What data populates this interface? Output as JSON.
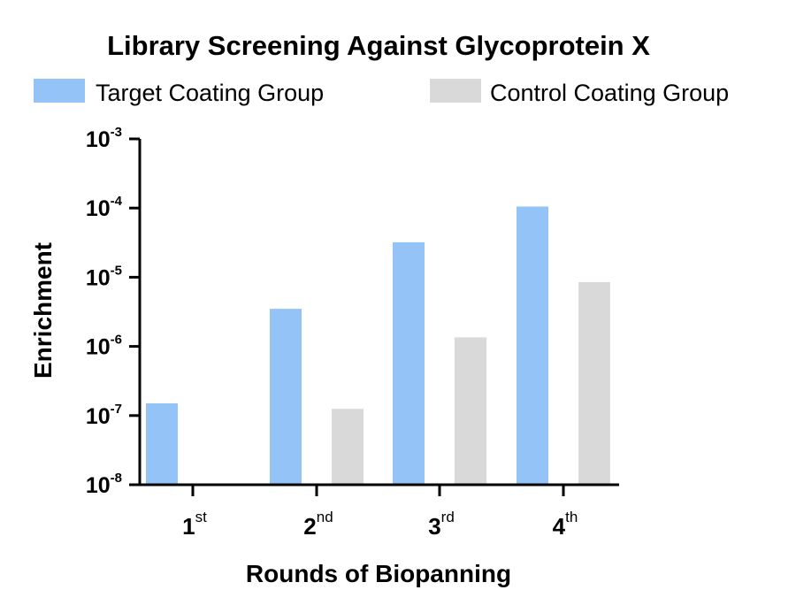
{
  "chart_data": {
    "type": "bar",
    "title": "Library Screening Against Glycoprotein X",
    "xlabel": "Rounds of Biopanning",
    "ylabel": "Enrichment",
    "yscale": "log",
    "ylim": [
      1e-08,
      0.001
    ],
    "yticks": [
      {
        "base": "10",
        "exp": "-3",
        "value": 0.001
      },
      {
        "base": "10",
        "exp": "-4",
        "value": 0.0001
      },
      {
        "base": "10",
        "exp": "-5",
        "value": 1e-05
      },
      {
        "base": "10",
        "exp": "-6",
        "value": 1e-06
      },
      {
        "base": "10",
        "exp": "-7",
        "value": 1e-07
      },
      {
        "base": "10",
        "exp": "-8",
        "value": 1e-08
      }
    ],
    "categories": [
      {
        "main": "1",
        "sup": "st"
      },
      {
        "main": "2",
        "sup": "nd"
      },
      {
        "main": "3",
        "sup": "rd"
      },
      {
        "main": "4",
        "sup": "th"
      }
    ],
    "series": [
      {
        "name": "Target Coating Group",
        "color": "#94c3f7",
        "values": [
          1.5e-07,
          3.5e-06,
          3.2e-05,
          0.000105
        ]
      },
      {
        "name": "Control Coating Group",
        "color": "#d9d9d9",
        "values": [
          null,
          1.25e-07,
          1.35e-06,
          8.5e-06
        ]
      }
    ],
    "legend_position": "top",
    "grid": false
  }
}
